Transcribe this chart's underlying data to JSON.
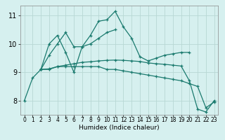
{
  "xlabel": "Humidex (Indice chaleur)",
  "background_color": "#d6f0ef",
  "grid_color": "#b8d8d4",
  "line_color": "#1a7a6e",
  "xlim": [
    -0.5,
    23.5
  ],
  "ylim": [
    7.5,
    11.35
  ],
  "xticks": [
    0,
    1,
    2,
    3,
    4,
    5,
    6,
    7,
    8,
    9,
    10,
    11,
    12,
    13,
    14,
    15,
    16,
    17,
    18,
    19,
    20,
    21,
    22,
    23
  ],
  "yticks": [
    8,
    9,
    10,
    11
  ],
  "series": [
    [
      8.0,
      8.8,
      9.1,
      10.0,
      10.3,
      9.7,
      9.0,
      9.9,
      10.3,
      10.8,
      10.85,
      11.15,
      10.6,
      10.2,
      9.55,
      9.4,
      9.5,
      9.6,
      9.65,
      9.7,
      9.7,
      null,
      null,
      null
    ],
    [
      null,
      null,
      9.1,
      9.6,
      10.0,
      10.4,
      9.9,
      9.9,
      10.0,
      10.2,
      10.4,
      10.5,
      null,
      null,
      null,
      null,
      null,
      null,
      null,
      null,
      null,
      null,
      null,
      null
    ],
    [
      null,
      null,
      9.1,
      9.1,
      9.2,
      9.2,
      9.2,
      9.2,
      9.2,
      9.2,
      9.1,
      9.1,
      9.05,
      9.0,
      8.95,
      8.9,
      8.85,
      8.8,
      8.75,
      8.7,
      8.6,
      8.5,
      7.75,
      7.95
    ],
    [
      null,
      null,
      9.1,
      9.12,
      9.2,
      9.25,
      9.3,
      9.35,
      9.37,
      9.4,
      9.42,
      9.43,
      9.42,
      9.4,
      9.38,
      9.33,
      9.3,
      9.28,
      9.25,
      9.22,
      8.7,
      7.7,
      7.6,
      8.0
    ]
  ]
}
